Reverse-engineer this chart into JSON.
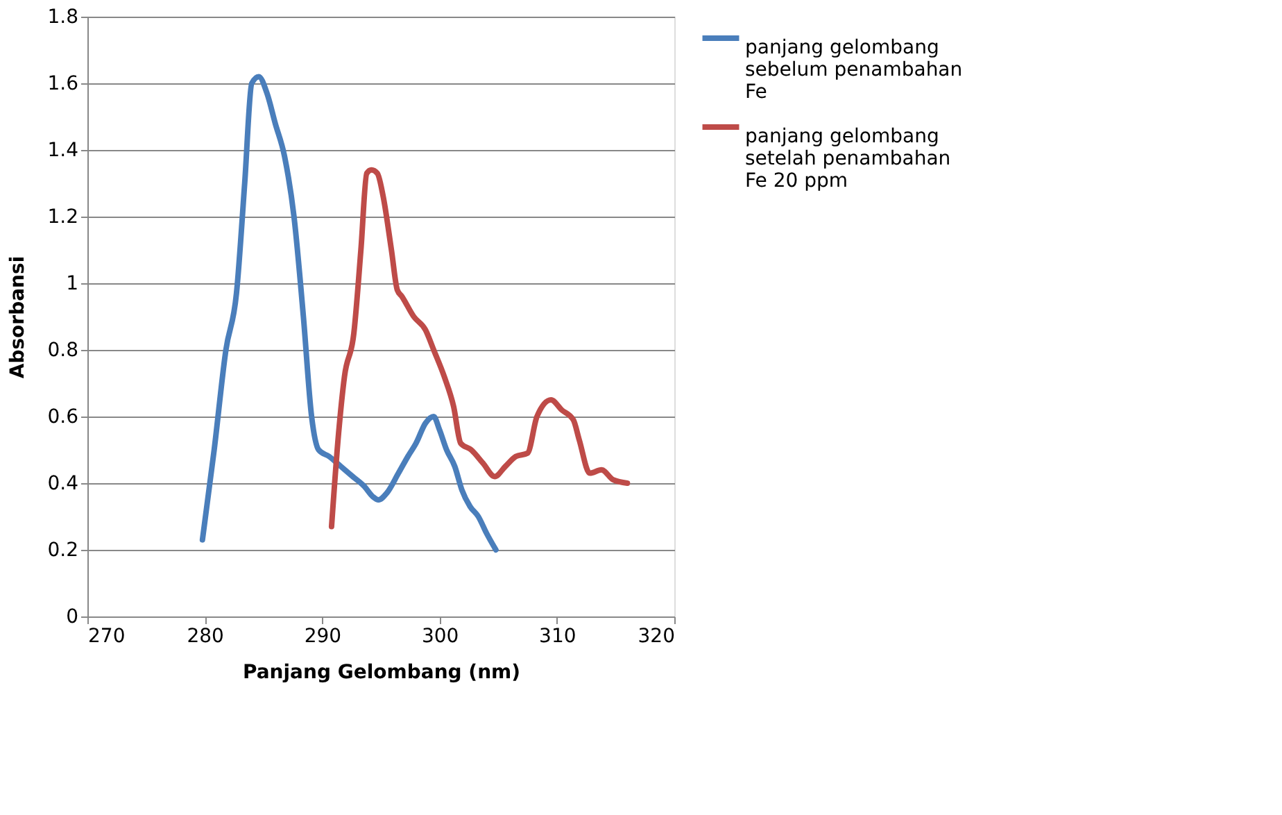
{
  "chart_data": {
    "type": "line",
    "xlabel": "Panjang Gelombang (nm)",
    "ylabel": "Absorbansi",
    "xlim": [
      270,
      320
    ],
    "xticks": [
      270,
      280,
      290,
      300,
      310,
      320
    ],
    "ylim": [
      0,
      1.8
    ],
    "yticks": [
      0,
      0.2,
      0.4,
      0.6,
      0.8,
      1,
      1.2,
      1.4,
      1.6,
      1.8
    ],
    "grid": "y",
    "legend": "right",
    "marker": "none",
    "line_style": "solid",
    "series": [
      {
        "name": "panjang gelombang sebelum penambahan Fe",
        "color": "#4a7ebb",
        "x": [
          279.8,
          280.8,
          281.8,
          282.7,
          283.4,
          284,
          284.6,
          285.3,
          286,
          286.8,
          287.6,
          288.4,
          289.1,
          289.7,
          290.6,
          291.6,
          292.6,
          293.6,
          294.3,
          294.8,
          295.5,
          296.5,
          297.3,
          298,
          298.8,
          299.5,
          300,
          300.6,
          301.3,
          301.9,
          302.6,
          303.3,
          304,
          304.8
        ],
        "values": [
          0.23,
          0.5,
          0.8,
          0.97,
          1.3,
          1.6,
          1.62,
          1.57,
          1.48,
          1.38,
          1.2,
          0.9,
          0.6,
          0.5,
          0.48,
          0.45,
          0.42,
          0.39,
          0.36,
          0.35,
          0.37,
          0.43,
          0.48,
          0.52,
          0.58,
          0.6,
          0.56,
          0.5,
          0.45,
          0.38,
          0.33,
          0.3,
          0.25,
          0.2
        ]
      },
      {
        "name": "panjang gelombang setelah penambahan Fe 20 ppm",
        "color": "#be4b48",
        "x": [
          290.8,
          291.4,
          291.9,
          292.7,
          293.3,
          293.8,
          294.2,
          294.7,
          295.2,
          295.9,
          296.4,
          296.8,
          297.8,
          298.8,
          299.5,
          300.4,
          301.2,
          301.8,
          302.7,
          303.7,
          304.7,
          305.6,
          306.5,
          307.5,
          308.3,
          309.5,
          310.4,
          311.4,
          311.9,
          312.8,
          313.8,
          314.8,
          316
        ],
        "values": [
          0.27,
          0.55,
          0.72,
          0.85,
          1.1,
          1.33,
          1.34,
          1.33,
          1.26,
          1.1,
          0.98,
          0.96,
          0.9,
          0.86,
          0.8,
          0.72,
          0.63,
          0.52,
          0.5,
          0.46,
          0.42,
          0.45,
          0.48,
          0.49,
          0.6,
          0.65,
          0.62,
          0.59,
          0.53,
          0.43,
          0.44,
          0.41,
          0.4
        ]
      }
    ]
  }
}
